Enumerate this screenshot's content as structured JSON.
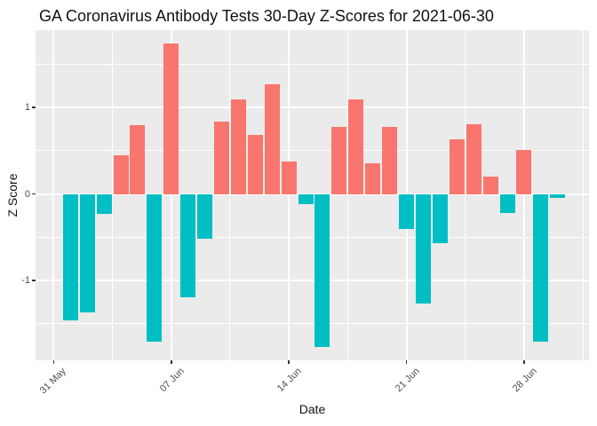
{
  "title": "GA Coronavirus Antibody Tests 30-Day Z-Scores for 2021-06-30",
  "colors": {
    "positive_bar": "#F8766D",
    "negative_bar": "#00BFC4",
    "panel_background": "#EBEBEB",
    "gridline": "#FFFFFF",
    "axis_tick_text": "#4D4D4D",
    "axis_title_text": "#111111",
    "tick_mark": "#333333"
  },
  "chart_data": {
    "type": "bar",
    "title": "GA Coronavirus Antibody Tests 30-Day Z-Scores for 2021-06-30",
    "xlabel": "Date",
    "ylabel": "Z Score",
    "categories": [
      "2021-06-01",
      "2021-06-02",
      "2021-06-03",
      "2021-06-04",
      "2021-06-05",
      "2021-06-06",
      "2021-06-07",
      "2021-06-08",
      "2021-06-09",
      "2021-06-10",
      "2021-06-11",
      "2021-06-12",
      "2021-06-13",
      "2021-06-14",
      "2021-06-15",
      "2021-06-16",
      "2021-06-17",
      "2021-06-18",
      "2021-06-19",
      "2021-06-20",
      "2021-06-21",
      "2021-06-22",
      "2021-06-23",
      "2021-06-24",
      "2021-06-25",
      "2021-06-26",
      "2021-06-27",
      "2021-06-28",
      "2021-06-29",
      "2021-06-30"
    ],
    "values": [
      -1.46,
      -1.37,
      -0.23,
      0.45,
      0.8,
      -1.71,
      1.74,
      -1.19,
      -0.52,
      0.84,
      1.09,
      0.68,
      1.27,
      0.38,
      -0.12,
      -1.77,
      0.78,
      1.09,
      0.35,
      0.78,
      -0.4,
      -1.27,
      -0.57,
      0.63,
      0.81,
      0.2,
      -0.22,
      0.51,
      -1.71,
      -0.05
    ],
    "x_tick_labels": [
      "31 May",
      "07 Jun",
      "14 Jun",
      "21 Jun",
      "28 Jun"
    ],
    "x_tick_day_index": [
      0,
      7,
      14,
      21,
      28
    ],
    "y_tick_labels": [
      "1",
      "0",
      "-1"
    ],
    "y_tick_values": [
      1,
      0,
      -1
    ],
    "y_minor_values": [
      1.5,
      0.5,
      -0.5,
      -1.5
    ],
    "ylim": [
      -1.92,
      1.89
    ],
    "grid": "white major and minor gridlines on grey panel",
    "legend": "none",
    "color_rule": "positive values salmon, negative values teal"
  }
}
